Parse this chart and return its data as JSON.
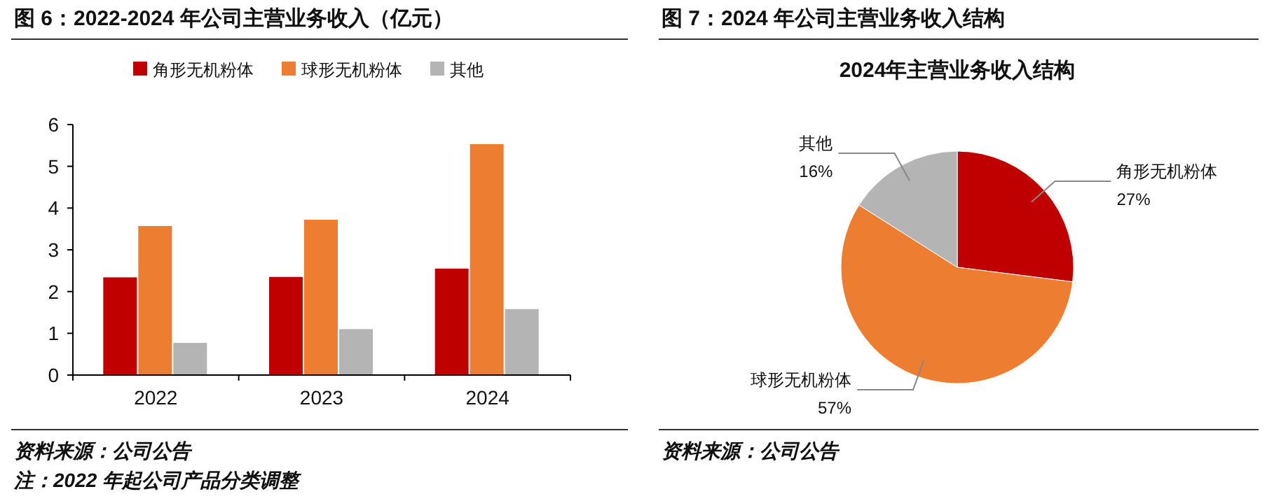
{
  "chart_data": [
    {
      "type": "bar",
      "title": "图 6：2022-2024 年公司主营业务收入（亿元）",
      "categories": [
        "2022",
        "2023",
        "2024"
      ],
      "series": [
        {
          "name": "角形无机粉体",
          "color": "#c00000",
          "values": [
            2.34,
            2.35,
            2.55
          ]
        },
        {
          "name": "球形无机粉体",
          "color": "#ed7d31",
          "values": [
            3.57,
            3.72,
            5.53
          ]
        },
        {
          "name": "其他",
          "color": "#b4b4b4",
          "values": [
            0.77,
            1.1,
            1.58
          ]
        }
      ],
      "ylim": [
        0,
        6
      ],
      "yticks": [
        0,
        1,
        2,
        3,
        4,
        5,
        6
      ],
      "grid": false,
      "legend": "top",
      "annotations": [
        "资料来源：公司公告",
        "注：2022 年起公司产品分类调整"
      ]
    },
    {
      "type": "pie",
      "title": "图 7：2024 年公司主营业务收入结构",
      "subtitle": "2024年主营业务收入结构",
      "categories": [
        "角形无机粉体",
        "球形无机粉体",
        "其他"
      ],
      "values": [
        27,
        57,
        16
      ],
      "colors": [
        "#c00000",
        "#ed7d31",
        "#b4b4b4"
      ],
      "value_labels": [
        "27%",
        "57%",
        "16%"
      ],
      "annotations": [
        "资料来源：公司公告"
      ]
    }
  ]
}
